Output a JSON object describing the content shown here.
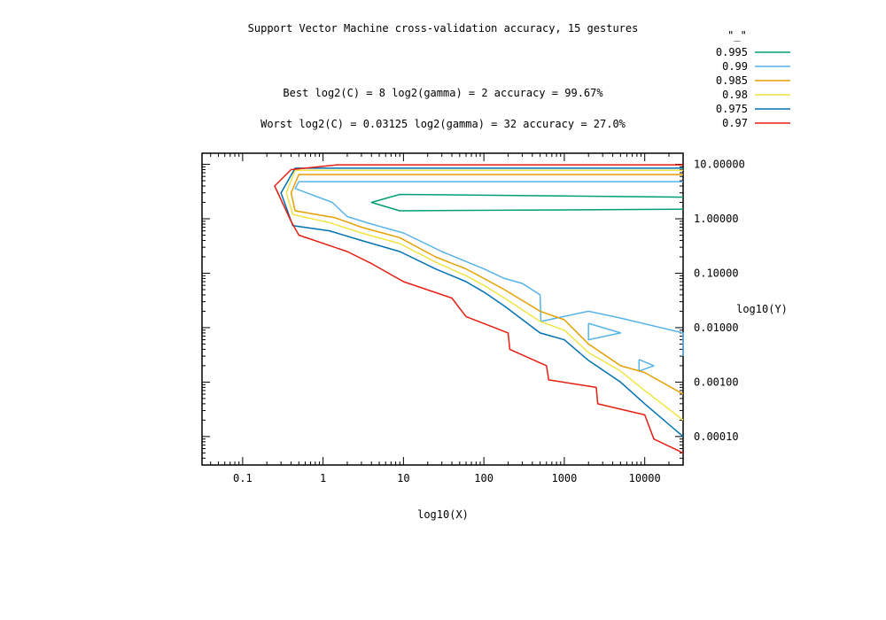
{
  "chart_data": {
    "type": "line",
    "title": "Support Vector Machine cross-validation accuracy, 15 gestures",
    "annotations": [
      "Best log2(C) = 8  log2(gamma) = 2  accuracy = 99.67%",
      "Worst log2(C) = 0.03125  log2(gamma) = 32   accuracy = 27.0%"
    ],
    "xlabel": "log10(X)",
    "ylabel": "log10(Y)",
    "xscale": "log",
    "yscale": "log",
    "xlim": [
      0.03125,
      30000
    ],
    "ylim": [
      3e-05,
      16
    ],
    "x_tick_labels": [
      "0.1",
      "1",
      "10",
      "100",
      "1000",
      "10000"
    ],
    "x_tick_values": [
      0.1,
      1,
      10,
      100,
      1000,
      10000
    ],
    "y_tick_labels": [
      "10.00000",
      "1.00000",
      "0.10000",
      "0.01000",
      "0.00100",
      "0.00010"
    ],
    "y_tick_values": [
      10,
      1,
      0.1,
      0.01,
      0.001,
      0.0001
    ],
    "y_axis_side": "right",
    "legend_title": "\"_\"",
    "legend_position": "top-right",
    "grid": false,
    "series": [
      {
        "name": "0.995",
        "color": "#009e73",
        "paths": [
          [
            [
              30000,
              2.5
            ],
            [
              9,
              2.8
            ],
            [
              4,
              2.0
            ],
            [
              9,
              1.4
            ],
            [
              30000,
              1.5
            ]
          ]
        ]
      },
      {
        "name": "0.99",
        "color": "#56b4e9",
        "paths": [
          [
            [
              30000,
              4.8
            ],
            [
              0.5,
              4.8
            ],
            [
              0.45,
              3.6
            ],
            [
              1.3,
              2.0
            ],
            [
              2.0,
              1.1
            ],
            [
              4,
              0.8
            ],
            [
              10,
              0.55
            ],
            [
              30,
              0.25
            ],
            [
              100,
              0.12
            ],
            [
              180,
              0.08
            ],
            [
              300,
              0.065
            ],
            [
              500,
              0.04
            ],
            [
              512,
              0.013
            ],
            [
              2000,
              0.02
            ],
            [
              5000,
              0.015
            ],
            [
              30000,
              0.008
            ],
            [
              30000,
              0.003
            ]
          ],
          [
            [
              2000,
              0.012
            ],
            [
              5000,
              0.008
            ],
            [
              2000,
              0.006
            ],
            [
              2000,
              0.012
            ]
          ],
          [
            [
              8500,
              0.0026
            ],
            [
              13000,
              0.002
            ],
            [
              8500,
              0.0016
            ],
            [
              8500,
              0.0026
            ]
          ]
        ]
      },
      {
        "name": "0.985",
        "color": "#e69f00",
        "paths": [
          [
            [
              30000,
              6.5
            ],
            [
              0.5,
              6.5
            ],
            [
              0.4,
              3.0
            ],
            [
              0.45,
              1.4
            ],
            [
              1.4,
              1.05
            ],
            [
              3,
              0.7
            ],
            [
              9,
              0.45
            ],
            [
              25,
              0.2
            ],
            [
              60,
              0.12
            ],
            [
              100,
              0.08
            ],
            [
              180,
              0.05
            ],
            [
              500,
              0.02
            ],
            [
              1000,
              0.014
            ],
            [
              2000,
              0.005
            ],
            [
              5000,
              0.002
            ],
            [
              10000,
              0.0015
            ],
            [
              30000,
              0.0006
            ]
          ]
        ]
      },
      {
        "name": "0.98",
        "color": "#f0e442",
        "paths": [
          [
            [
              30000,
              7.8
            ],
            [
              0.45,
              7.8
            ],
            [
              0.35,
              3.0
            ],
            [
              0.42,
              1.2
            ],
            [
              1.2,
              0.85
            ],
            [
              3,
              0.55
            ],
            [
              9,
              0.35
            ],
            [
              25,
              0.16
            ],
            [
              60,
              0.09
            ],
            [
              100,
              0.06
            ],
            [
              180,
              0.035
            ],
            [
              500,
              0.013
            ],
            [
              1000,
              0.009
            ],
            [
              2000,
              0.0035
            ],
            [
              5000,
              0.0016
            ],
            [
              10000,
              0.0007
            ],
            [
              30000,
              0.0002
            ]
          ]
        ]
      },
      {
        "name": "0.975",
        "color": "#0072b2",
        "paths": [
          [
            [
              30000,
              8.5
            ],
            [
              0.45,
              8.5
            ],
            [
              0.3,
              3.0
            ],
            [
              0.42,
              0.75
            ],
            [
              1.2,
              0.6
            ],
            [
              3,
              0.4
            ],
            [
              9,
              0.25
            ],
            [
              25,
              0.12
            ],
            [
              60,
              0.07
            ],
            [
              100,
              0.045
            ],
            [
              180,
              0.025
            ],
            [
              500,
              0.008
            ],
            [
              1000,
              0.006
            ],
            [
              2000,
              0.0025
            ],
            [
              5000,
              0.001
            ],
            [
              10000,
              0.0004
            ],
            [
              30000,
              0.0001
            ]
          ]
        ]
      },
      {
        "name": "0.97",
        "color": "#e51e10",
        "paths": [
          [
            [
              30000,
              9.8
            ],
            [
              1.5,
              9.8
            ],
            [
              0.4,
              8.0
            ],
            [
              0.25,
              4.0
            ],
            [
              0.4,
              0.9
            ],
            [
              0.5,
              0.5
            ],
            [
              2,
              0.25
            ],
            [
              4,
              0.15
            ],
            [
              10,
              0.07
            ],
            [
              40,
              0.035
            ],
            [
              60,
              0.016
            ],
            [
              200,
              0.008
            ],
            [
              210,
              0.004
            ],
            [
              600,
              0.002
            ],
            [
              640,
              0.0011
            ],
            [
              2500,
              0.0008
            ],
            [
              2600,
              0.0004
            ],
            [
              10000,
              0.00025
            ],
            [
              13000,
              9e-05
            ],
            [
              30000,
              5e-05
            ]
          ]
        ]
      }
    ]
  }
}
